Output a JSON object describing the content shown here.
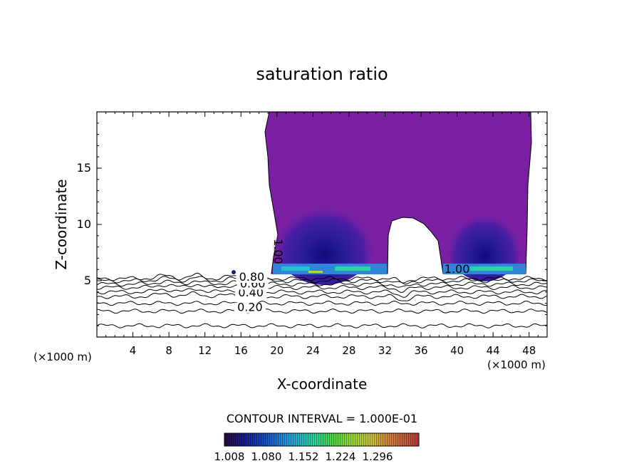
{
  "chart_data": {
    "type": "contour",
    "title": "saturation ratio",
    "xlabel": "X-coordinate",
    "ylabel": "Z-coordinate",
    "x_unit_note_left": "(×1000 m)",
    "x_unit_note_right": "(×1000 m)",
    "xlim": [
      0,
      50
    ],
    "ylim": [
      0,
      20
    ],
    "x_ticks": [
      4,
      8,
      12,
      16,
      20,
      24,
      28,
      32,
      36,
      40,
      44,
      48
    ],
    "y_ticks": [
      5,
      10,
      15
    ],
    "contour_line_labels": [
      {
        "text": "0.20",
        "x": 17.0,
        "y": 2.3
      },
      {
        "text": "0.40",
        "x": 17.1,
        "y": 3.6
      },
      {
        "text": "0.60",
        "x": 17.3,
        "y": 4.4
      },
      {
        "text": "0.80",
        "x": 17.2,
        "y": 5.0
      },
      {
        "text": "1.00",
        "x": 19.7,
        "y": 7.6
      },
      {
        "text": "1.00",
        "x": 40.0,
        "y": 5.7
      }
    ],
    "contour_interval_text": "CONTOUR INTERVAL = 1.000E-01",
    "colorbar": {
      "ticks": [
        "1.008",
        "1.080",
        "1.152",
        "1.224",
        "1.296"
      ],
      "colors": [
        "#2a0b3a",
        "#1a1a8c",
        "#1a55c8",
        "#27a0d8",
        "#2bd4a0",
        "#4fd845",
        "#9ad83a",
        "#c9c23a",
        "#d47a3a",
        "#c84a3a",
        "#b04040"
      ]
    },
    "grid": false
  },
  "colors": {
    "supersaturated_fill": "#7a1fa2",
    "cloud_base": "#2f86d8"
  }
}
